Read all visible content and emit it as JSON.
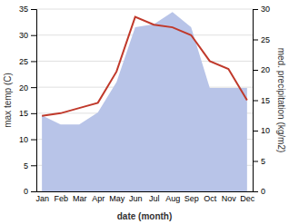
{
  "chart_data": {
    "type": "line",
    "categories": [
      "Jan",
      "Feb",
      "Mar",
      "Apr",
      "May",
      "Jun",
      "Jul",
      "Aug",
      "Sep",
      "Oct",
      "Nov",
      "Dec"
    ],
    "series": [
      {
        "type": "area",
        "color": "#b8c4e8",
        "axis": "y2",
        "values": [
          12.5,
          11.0,
          11.0,
          13.0,
          18.0,
          27.0,
          27.5,
          29.5,
          27.0,
          17.0,
          17.0,
          17.0
        ]
      },
      {
        "type": "line",
        "color": "#c0392b",
        "values": [
          14.5,
          15.0,
          16.0,
          17.0,
          23.0,
          33.5,
          32.0,
          31.5,
          30.0,
          25.0,
          23.5,
          17.5
        ]
      }
    ],
    "xlabel": "date (month)",
    "ylabel": "max temp (C)",
    "y2label": "med. precipitation (kg/m2)",
    "ylim": [
      0,
      35
    ],
    "yticks": [
      0,
      5,
      10,
      15,
      20,
      25,
      30,
      35
    ],
    "y2lim": [
      0,
      30
    ],
    "y2ticks": [
      0,
      5,
      10,
      15,
      20,
      25,
      30
    ],
    "grid": true
  }
}
